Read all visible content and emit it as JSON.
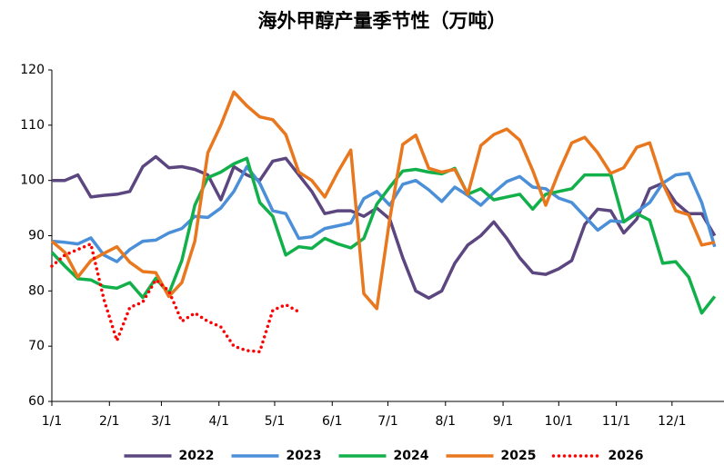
{
  "chart_data": {
    "type": "line",
    "title": "海外甲醇产量季节性（万吨）",
    "x": [
      0,
      7,
      14,
      21,
      28,
      35,
      42,
      49,
      56,
      63,
      70,
      77,
      84,
      91,
      98,
      105,
      112,
      119,
      126,
      133,
      140,
      147,
      154,
      161,
      168,
      175,
      182,
      189,
      196,
      203,
      210,
      217,
      224,
      231,
      238,
      245,
      252,
      259,
      266,
      273,
      280,
      287,
      294,
      301,
      308,
      315,
      322,
      329,
      336,
      343,
      350,
      357
    ],
    "xlim": [
      0,
      362
    ],
    "xticks": [
      {
        "value": 0,
        "label": "1/1"
      },
      {
        "value": 31,
        "label": "2/1"
      },
      {
        "value": 59,
        "label": "3/1"
      },
      {
        "value": 90,
        "label": "4/1"
      },
      {
        "value": 120,
        "label": "5/1"
      },
      {
        "value": 151,
        "label": "6/1"
      },
      {
        "value": 181,
        "label": "7/1"
      },
      {
        "value": 212,
        "label": "8/1"
      },
      {
        "value": 243,
        "label": "9/1"
      },
      {
        "value": 273,
        "label": "10/1"
      },
      {
        "value": 304,
        "label": "11/1"
      },
      {
        "value": 334,
        "label": "12/1"
      }
    ],
    "ylim": [
      60,
      120
    ],
    "yticks": [
      60,
      70,
      80,
      90,
      100,
      110,
      120
    ],
    "grid": false,
    "legend": "bottom",
    "series": [
      {
        "name": "2022",
        "color": "#5c4680",
        "style": "solid",
        "values": [
          100,
          100,
          101,
          97,
          97.3,
          97.5,
          98,
          102.5,
          104.3,
          102.3,
          102.5,
          102,
          101,
          96.5,
          102.5,
          101,
          100,
          103.5,
          104,
          101,
          98,
          94,
          94.5,
          94.5,
          93.5,
          95,
          93,
          86,
          80,
          78.7,
          80,
          85,
          88.3,
          90,
          92.5,
          89.5,
          86,
          83.3,
          83,
          84,
          85.5,
          92,
          94.8,
          94.5,
          90.5,
          93,
          98.5,
          99.5,
          96,
          94,
          94,
          90
        ]
      },
      {
        "name": "2023",
        "color": "#4a8fd8",
        "style": "solid",
        "values": [
          89,
          88.8,
          88.5,
          89.6,
          86.5,
          85.3,
          87.5,
          89,
          89.2,
          90.5,
          91.3,
          93.5,
          93.3,
          95,
          98,
          102.5,
          99.5,
          94.5,
          94,
          89.5,
          89.8,
          91.3,
          91.8,
          92.3,
          96.7,
          98,
          95.5,
          99.3,
          100,
          98.3,
          96.2,
          98.8,
          97.3,
          95.5,
          97.8,
          99.8,
          100.7,
          98.8,
          98.5,
          96.8,
          96,
          93.5,
          91,
          92.7,
          92.5,
          94.3,
          96,
          99.5,
          101,
          101.3,
          96,
          88
        ]
      },
      {
        "name": "2024",
        "color": "#12b04a",
        "style": "solid",
        "values": [
          87,
          84.5,
          82.2,
          82,
          80.8,
          80.5,
          81.5,
          78.8,
          82.3,
          79.5,
          85.5,
          95.5,
          100.5,
          101.5,
          103,
          104,
          96,
          93.5,
          86.5,
          88,
          87.7,
          89.5,
          88.5,
          87.8,
          89.5,
          95.7,
          98.8,
          101.7,
          102,
          101.5,
          101.2,
          102.2,
          97.5,
          98.5,
          96.5,
          97,
          97.5,
          94.8,
          97.5,
          98,
          98.5,
          101,
          101,
          101,
          92.5,
          94,
          92.8,
          85,
          85.3,
          82.5,
          76,
          79
        ]
      },
      {
        "name": "2025",
        "color": "#e8771e",
        "style": "solid",
        "values": [
          89,
          87,
          82.5,
          85.5,
          86.8,
          88,
          85.2,
          83.5,
          83.3,
          79,
          81.5,
          89,
          105,
          110,
          116,
          113.5,
          111.5,
          111,
          108.3,
          101.5,
          100,
          97,
          101.5,
          105.5,
          79.5,
          76.8,
          93,
          106.5,
          108.2,
          102.2,
          101.5,
          102,
          97.5,
          106.3,
          108.3,
          109.3,
          107.3,
          101.8,
          95.5,
          101.5,
          106.8,
          107.8,
          105,
          101.3,
          102.3,
          106,
          106.8,
          99.5,
          94.5,
          93.8,
          88.3,
          88.8
        ]
      },
      {
        "name": "2026",
        "color": "#ff0000",
        "style": "dotted",
        "values": [
          84.5,
          86.5,
          87.5,
          88.5,
          78.5,
          71,
          77,
          78,
          82,
          80,
          74.5,
          76,
          74.5,
          73.5,
          70,
          69.2,
          69,
          76.5,
          77.5,
          76.2,
          null,
          null,
          null,
          null,
          null,
          null,
          null,
          null,
          null,
          null,
          null,
          null,
          null,
          null,
          null,
          null,
          null,
          null,
          null,
          null,
          null,
          null,
          null,
          null,
          null,
          null,
          null,
          null,
          null,
          null,
          null,
          null
        ]
      }
    ]
  }
}
